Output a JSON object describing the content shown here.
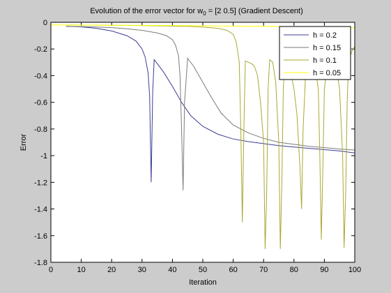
{
  "figure": {
    "background": "#cccccc",
    "axes_background": "#ffffff"
  },
  "chart_data": {
    "type": "line",
    "title_main": "Evolution of the error vector for w",
    "title_sub": "0",
    "title_rest": " = [2 0.5] (Gradient Descent)",
    "xlabel": "Iteration",
    "ylabel": "Error",
    "xlim": [
      0,
      100
    ],
    "ylim": [
      -1.8,
      0
    ],
    "xticks": [
      "0",
      "10",
      "20",
      "30",
      "40",
      "50",
      "60",
      "70",
      "80",
      "90",
      "100"
    ],
    "yticks": [
      "0",
      "-0.2",
      "-0.4",
      "-0.6",
      "-0.8",
      "-1",
      "-1.2",
      "-1.4",
      "-1.6",
      "-1.8"
    ],
    "grid": false,
    "legend_position": "top-right",
    "series": [
      {
        "name": "h = 0.2",
        "color": "#3b3b94",
        "x": [
          5,
          10,
          15,
          20,
          25,
          28,
          30,
          31,
          32,
          32.5,
          33,
          33.5,
          34,
          35,
          37,
          40,
          43,
          46,
          50,
          55,
          60,
          65,
          70,
          75,
          80,
          85,
          90,
          95,
          100
        ],
        "y": [
          -0.03,
          -0.034,
          -0.045,
          -0.065,
          -0.1,
          -0.14,
          -0.2,
          -0.26,
          -0.38,
          -0.55,
          -1.2,
          -0.52,
          -0.28,
          -0.31,
          -0.37,
          -0.48,
          -0.6,
          -0.7,
          -0.78,
          -0.84,
          -0.875,
          -0.895,
          -0.91,
          -0.925,
          -0.935,
          -0.945,
          -0.955,
          -0.965,
          -0.98
        ]
      },
      {
        "name": "h = 0.15",
        "color": "#7a7a7a",
        "x": [
          5,
          10,
          15,
          20,
          25,
          30,
          35,
          38,
          40,
          41,
          42,
          42.5,
          43,
          43.5,
          44,
          45,
          47,
          50,
          53,
          56,
          60,
          65,
          70,
          75,
          80,
          85,
          90,
          95,
          100
        ],
        "y": [
          -0.03,
          -0.032,
          -0.035,
          -0.04,
          -0.048,
          -0.06,
          -0.08,
          -0.1,
          -0.13,
          -0.17,
          -0.25,
          -0.4,
          -0.8,
          -1.26,
          -0.6,
          -0.27,
          -0.33,
          -0.45,
          -0.57,
          -0.68,
          -0.77,
          -0.83,
          -0.87,
          -0.9,
          -0.915,
          -0.93,
          -0.94,
          -0.95,
          -0.958
        ]
      },
      {
        "name": "h = 0.1",
        "color": "#a8a832",
        "x": [
          5,
          15,
          25,
          35,
          45,
          50,
          55,
          58,
          60,
          61,
          62,
          62.5,
          63,
          63.5,
          64,
          65,
          66,
          67,
          68,
          69,
          70,
          70.5,
          71,
          71.5,
          72,
          73,
          74,
          75,
          75.5,
          76,
          76.5,
          77,
          78,
          79,
          80,
          81,
          82,
          82.5,
          83,
          84,
          85,
          86,
          87,
          88,
          88.5,
          89,
          89.5,
          90,
          91,
          92,
          93,
          94,
          95,
          96,
          96.5,
          97,
          97.5,
          98,
          99,
          100
        ],
        "y": [
          -0.02,
          -0.021,
          -0.023,
          -0.026,
          -0.03,
          -0.035,
          -0.045,
          -0.06,
          -0.09,
          -0.15,
          -0.3,
          -0.8,
          -1.5,
          -0.8,
          -0.29,
          -0.3,
          -0.31,
          -0.33,
          -0.4,
          -0.6,
          -0.9,
          -1.7,
          -1.3,
          -0.5,
          -0.28,
          -0.3,
          -0.45,
          -0.9,
          -1.7,
          -1.2,
          -0.5,
          -0.28,
          -0.3,
          -0.38,
          -0.5,
          -0.7,
          -1.1,
          -1.4,
          -0.8,
          -0.3,
          -0.28,
          -0.3,
          -0.34,
          -0.5,
          -1.0,
          -1.63,
          -1.1,
          -0.5,
          -0.3,
          -0.28,
          -0.3,
          -0.35,
          -0.5,
          -1.0,
          -1.69,
          -1.3,
          -0.6,
          -0.3,
          -0.22,
          -0.18
        ]
      },
      {
        "name": "h = 0.05",
        "color": "#ffff00",
        "x": [
          0,
          10,
          20,
          30,
          40,
          50,
          60,
          70,
          80,
          90,
          100
        ],
        "y": [
          -0.02,
          -0.021,
          -0.022,
          -0.023,
          -0.024,
          -0.026,
          -0.028,
          -0.03,
          -0.033,
          -0.036,
          -0.04
        ]
      }
    ]
  }
}
